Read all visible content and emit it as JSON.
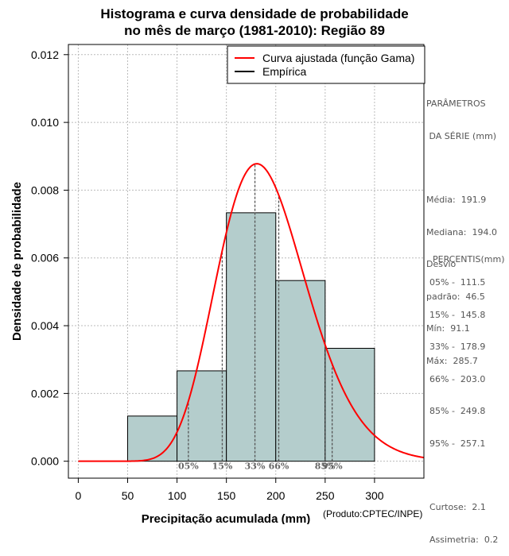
{
  "chart_data": {
    "type": "histogram",
    "title_line1": "Histograma e curva densidade de probabilidade",
    "title_line2": "no mês de março (1981-2010): Região 89",
    "xlabel": "Precipitação acumulada (mm)",
    "ylabel": "Densidade de probabilidade",
    "xlim": [
      -10,
      350
    ],
    "ylim": [
      -0.0005,
      0.0123
    ],
    "xticks": [
      0,
      50,
      100,
      150,
      200,
      250,
      300
    ],
    "yticks": [
      0.0,
      0.002,
      0.004,
      0.006,
      0.008,
      0.01,
      0.012
    ],
    "ytick_labels": [
      "0.000",
      "0.002",
      "0.004",
      "0.006",
      "0.008",
      "0.010",
      "0.012"
    ],
    "bins": [
      {
        "start": 50,
        "end": 100,
        "density": 0.001333
      },
      {
        "start": 100,
        "end": 150,
        "density": 0.002667
      },
      {
        "start": 150,
        "end": 200,
        "density": 0.007333
      },
      {
        "start": 200,
        "end": 250,
        "density": 0.005333
      },
      {
        "start": 250,
        "end": 300,
        "density": 0.003333
      }
    ],
    "gamma_fit": {
      "shape": 17.0,
      "scale": 11.3
    },
    "percentile_markers": [
      {
        "label": "05%",
        "x": 111.5
      },
      {
        "label": "15%",
        "x": 145.8
      },
      {
        "label": "33%",
        "x": 178.9
      },
      {
        "label": "66%",
        "x": 203.0
      },
      {
        "label": "85%",
        "x": 249.8
      },
      {
        "label": "95%",
        "x": 257.1
      }
    ],
    "legend": [
      "Curva ajustada (função Gama)",
      "Empírica"
    ],
    "legend_position": "top-right",
    "grid": true,
    "colors": {
      "bars": "#b4cdcc",
      "curve": "#ff0000",
      "markers": "#555555"
    }
  },
  "side_panel": {
    "param_title1": "PARÂMETROS",
    "param_title2": " DA SÉRIE (mm)",
    "media": "Média:  191.9",
    "mediana": "Mediana:  194.0",
    "desvio1": "Desvio",
    "desvio2": "padrão:  46.5",
    "min": "Mín:  91.1",
    "max": "Máx:  285.7",
    "perc_title": "PERCENTIS(mm)",
    "p05": "05% -  111.5",
    "p15": "15% -  145.8",
    "p33": "33% -  178.9",
    "p66": "66% -  203.0",
    "p85": "85% -  249.8",
    "p95": "95% -  257.1",
    "curtose": "Curtose:  2.1",
    "assimetria": "Assimetria:  0.2"
  },
  "credit": "(Produto:CPTEC/INPE)"
}
